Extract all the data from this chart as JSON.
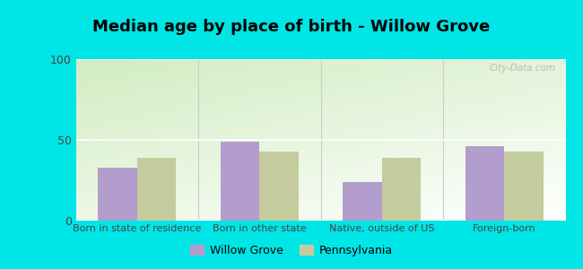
{
  "title": "Median age by place of birth - Willow Grove",
  "categories": [
    "Born in state of residence",
    "Born in other state",
    "Native, outside of US",
    "Foreign-born"
  ],
  "willow_grove": [
    33,
    49,
    24,
    46
  ],
  "pennsylvania": [
    39,
    43,
    39,
    43
  ],
  "willow_grove_color": "#b39dcc",
  "pennsylvania_color": "#c5cc9d",
  "background_color": "#00e5e5",
  "ylim": [
    0,
    100
  ],
  "yticks": [
    0,
    50,
    100
  ],
  "bar_width": 0.32,
  "legend_labels": [
    "Willow Grove",
    "Pennsylvania"
  ],
  "watermark": "City-Data.com",
  "title_fontsize": 13,
  "tick_fontsize": 8,
  "legend_fontsize": 9
}
